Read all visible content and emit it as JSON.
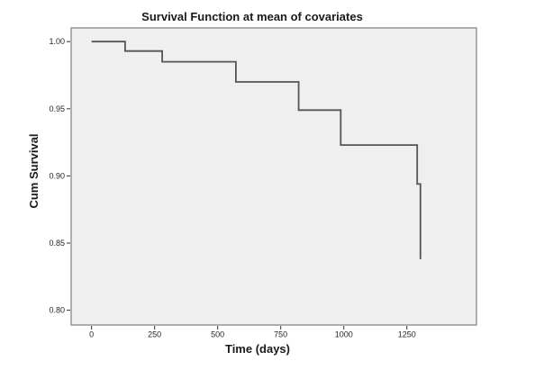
{
  "chart_data": {
    "type": "line",
    "subtype": "step_survival_curve",
    "title": "Survival Function at mean of covariates",
    "xlabel": "Time (days)",
    "ylabel": "Cum Survival",
    "x_ticks": [
      0,
      250,
      500,
      750,
      1000,
      1250
    ],
    "y_ticks": [
      1.0,
      0.95,
      0.9,
      0.85,
      0.8
    ],
    "xlim": [
      -81,
      1526
    ],
    "ylim": [
      0.789,
      1.0102
    ],
    "grid": false,
    "legend": false,
    "series": [
      {
        "name": "Survival Function",
        "points": [
          [
            0,
            1.0
          ],
          [
            133,
            0.993
          ],
          [
            280,
            0.985
          ],
          [
            572,
            0.97
          ],
          [
            821,
            0.949
          ],
          [
            988,
            0.923
          ],
          [
            1291,
            0.894
          ],
          [
            1304,
            0.838
          ]
        ]
      }
    ],
    "colors": {
      "curve": "#545459",
      "plot_background": "#efefef",
      "plot_border": "#8f8f8f",
      "tick": "#333333",
      "text": "#1a1a1a",
      "page_background": "#ffffff"
    }
  }
}
